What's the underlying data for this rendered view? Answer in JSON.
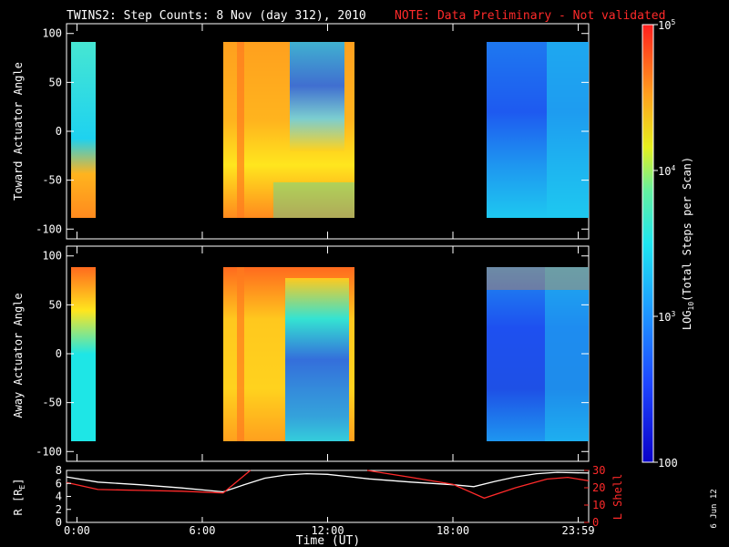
{
  "title": "TWINS2: Step Counts:  8 Nov (day 312), 2010",
  "note": "NOTE: Data Preliminary - Not validated",
  "date_stamp": "6 Jun 12",
  "chart_data": [
    {
      "type": "heatmap",
      "ylabel": "Toward Actuator Angle",
      "ylim": [
        -110,
        110
      ],
      "yticks": [
        100,
        50,
        0,
        -50,
        -100
      ],
      "xlim": [
        -0.5,
        24.5
      ],
      "data_blocks": [
        [
          -0.1,
          0.9,
          -88,
          90
        ],
        [
          6.9,
          13.0,
          -88,
          90
        ],
        [
          19.0,
          24.5,
          -88,
          90
        ]
      ],
      "colors": {
        "cyan": "#1ed2f0",
        "orange": "#ff8a1e",
        "yellow": "#ffd21e",
        "blue": "#1e64f0",
        "red": "#ff3a1e"
      }
    },
    {
      "type": "heatmap",
      "ylabel": "Away Actuator Angle",
      "ylim": [
        -110,
        110
      ],
      "yticks": [
        100,
        50,
        0,
        -50,
        -100
      ],
      "xlim": [
        -0.5,
        24.5
      ],
      "data_blocks": [
        [
          -0.1,
          0.9,
          -90,
          90
        ],
        [
          6.9,
          13.0,
          -90,
          90
        ],
        [
          19.0,
          24.5,
          -90,
          90
        ]
      ]
    },
    {
      "type": "line",
      "ylabel": "R [R",
      "ylabel_sub": "E",
      "ylabel_right": "L Shell",
      "ylim": [
        0,
        8
      ],
      "yticks": [
        0,
        2,
        4,
        6,
        8
      ],
      "ylim_right": [
        0,
        30
      ],
      "yticks_right": [
        0,
        10,
        20,
        30
      ],
      "xlim": [
        -0.5,
        24.5
      ],
      "xticks": [
        0,
        6,
        12,
        18,
        24
      ],
      "xtick_labels": [
        "0:00",
        "6:00",
        "12:00",
        "18:00",
        "23:59"
      ],
      "xlabel": "Time (UT)",
      "series": [
        {
          "x": [
            -0.5,
            1,
            3,
            5,
            7,
            8,
            9,
            10,
            11,
            12,
            14,
            16,
            18,
            19,
            20,
            21,
            22,
            23,
            24.5
          ],
          "values": [
            7.0,
            6.2,
            5.8,
            5.3,
            4.7,
            5.8,
            6.8,
            7.3,
            7.5,
            7.4,
            6.7,
            6.2,
            5.8,
            5.5,
            6.3,
            7.0,
            7.5,
            7.7,
            7.6
          ],
          "color": "#ffffff"
        },
        {
          "x": [
            -0.5,
            1,
            3,
            5,
            7,
            8.3
          ],
          "values": [
            23,
            19,
            18.5,
            18,
            17,
            30
          ],
          "color": "#ff2a2a"
        },
        {
          "x": [
            13.9,
            16,
            18,
            19.5,
            21,
            22.5,
            23.5,
            24.5
          ],
          "values": [
            30,
            26,
            22,
            14,
            20,
            25,
            26,
            24
          ],
          "color": "#ff2a2a"
        }
      ]
    }
  ],
  "colorbar": {
    "label": "LOG",
    "label_sub": "10",
    "label_rest": "(Total Steps per Scan)",
    "ticks": [
      {
        "base": "10",
        "exp": "5",
        "value": 100000
      },
      {
        "base": "10",
        "exp": "4",
        "value": 10000
      },
      {
        "base": "10",
        "exp": "3",
        "value": 1000
      },
      {
        "base": "100",
        "exp": "",
        "value": 100
      }
    ],
    "range": [
      100,
      100000
    ]
  }
}
